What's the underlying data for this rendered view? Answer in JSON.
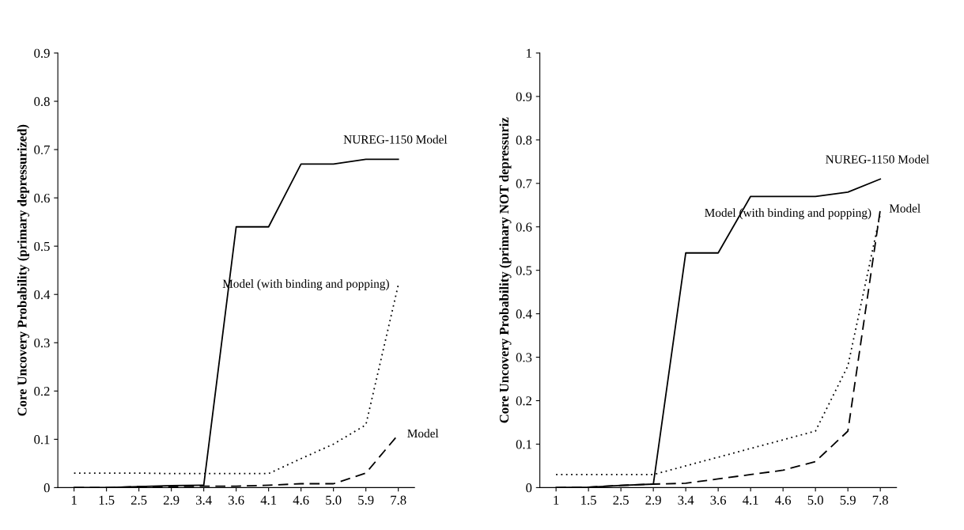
{
  "chart_data": [
    {
      "type": "line",
      "ylabel": "Core Uncovery Probability (primary depressurized)",
      "categories": [
        "1",
        "1.5",
        "2.5",
        "2.9",
        "3.4",
        "3.6",
        "4.1",
        "4.6",
        "5.0",
        "5.9",
        "7.8"
      ],
      "ylim": [
        0,
        0.9
      ],
      "yticks": [
        0,
        0.1,
        0.2,
        0.3,
        0.4,
        0.5,
        0.6,
        0.7,
        0.8,
        0.9
      ],
      "grid": false,
      "legend": false,
      "series": [
        {
          "name": "NUREG-1150 Model",
          "color": "#000000",
          "line_style": "solid",
          "values": [
            0,
            0,
            0.002,
            0.004,
            0.005,
            0.54,
            0.54,
            0.67,
            0.67,
            0.68,
            0.68
          ]
        },
        {
          "name": "Model (with binding and popping)",
          "color": "#000000",
          "line_style": "dotted",
          "values": [
            0.03,
            0.03,
            0.03,
            0.029,
            0.029,
            0.029,
            0.029,
            0.06,
            0.09,
            0.13,
            0.42
          ]
        },
        {
          "name": "Model",
          "color": "#000000",
          "line_style": "dashed",
          "values": [
            0,
            0,
            0.002,
            0.002,
            0.003,
            0.003,
            0.005,
            0.008,
            0.008,
            0.03,
            0.11
          ]
        }
      ]
    },
    {
      "type": "line",
      "ylabel": "Core Uncovery Probability (primary NOT depressuriz",
      "categories": [
        "1",
        "1.5",
        "2.5",
        "2.9",
        "3.4",
        "3.6",
        "4.1",
        "4.6",
        "5.0",
        "5.9",
        "7.8"
      ],
      "ylim": [
        0,
        1
      ],
      "yticks": [
        0,
        0.1,
        0.2,
        0.3,
        0.4,
        0.5,
        0.6,
        0.7,
        0.8,
        0.9,
        1
      ],
      "grid": false,
      "legend": false,
      "series": [
        {
          "name": "NUREG-1150 Model",
          "color": "#000000",
          "line_style": "solid",
          "values": [
            0,
            0.001,
            0.005,
            0.008,
            0.54,
            0.54,
            0.67,
            0.67,
            0.67,
            0.68,
            0.71
          ]
        },
        {
          "name": "Model (with binding and popping)",
          "color": "#000000",
          "line_style": "dotted",
          "values": [
            0.03,
            0.03,
            0.03,
            0.03,
            0.05,
            0.07,
            0.09,
            0.11,
            0.13,
            0.28,
            0.63
          ]
        },
        {
          "name": "Model",
          "color": "#000000",
          "line_style": "dashed",
          "values": [
            0,
            0.001,
            0.005,
            0.008,
            0.01,
            0.02,
            0.03,
            0.04,
            0.06,
            0.13,
            0.64
          ]
        }
      ]
    }
  ]
}
